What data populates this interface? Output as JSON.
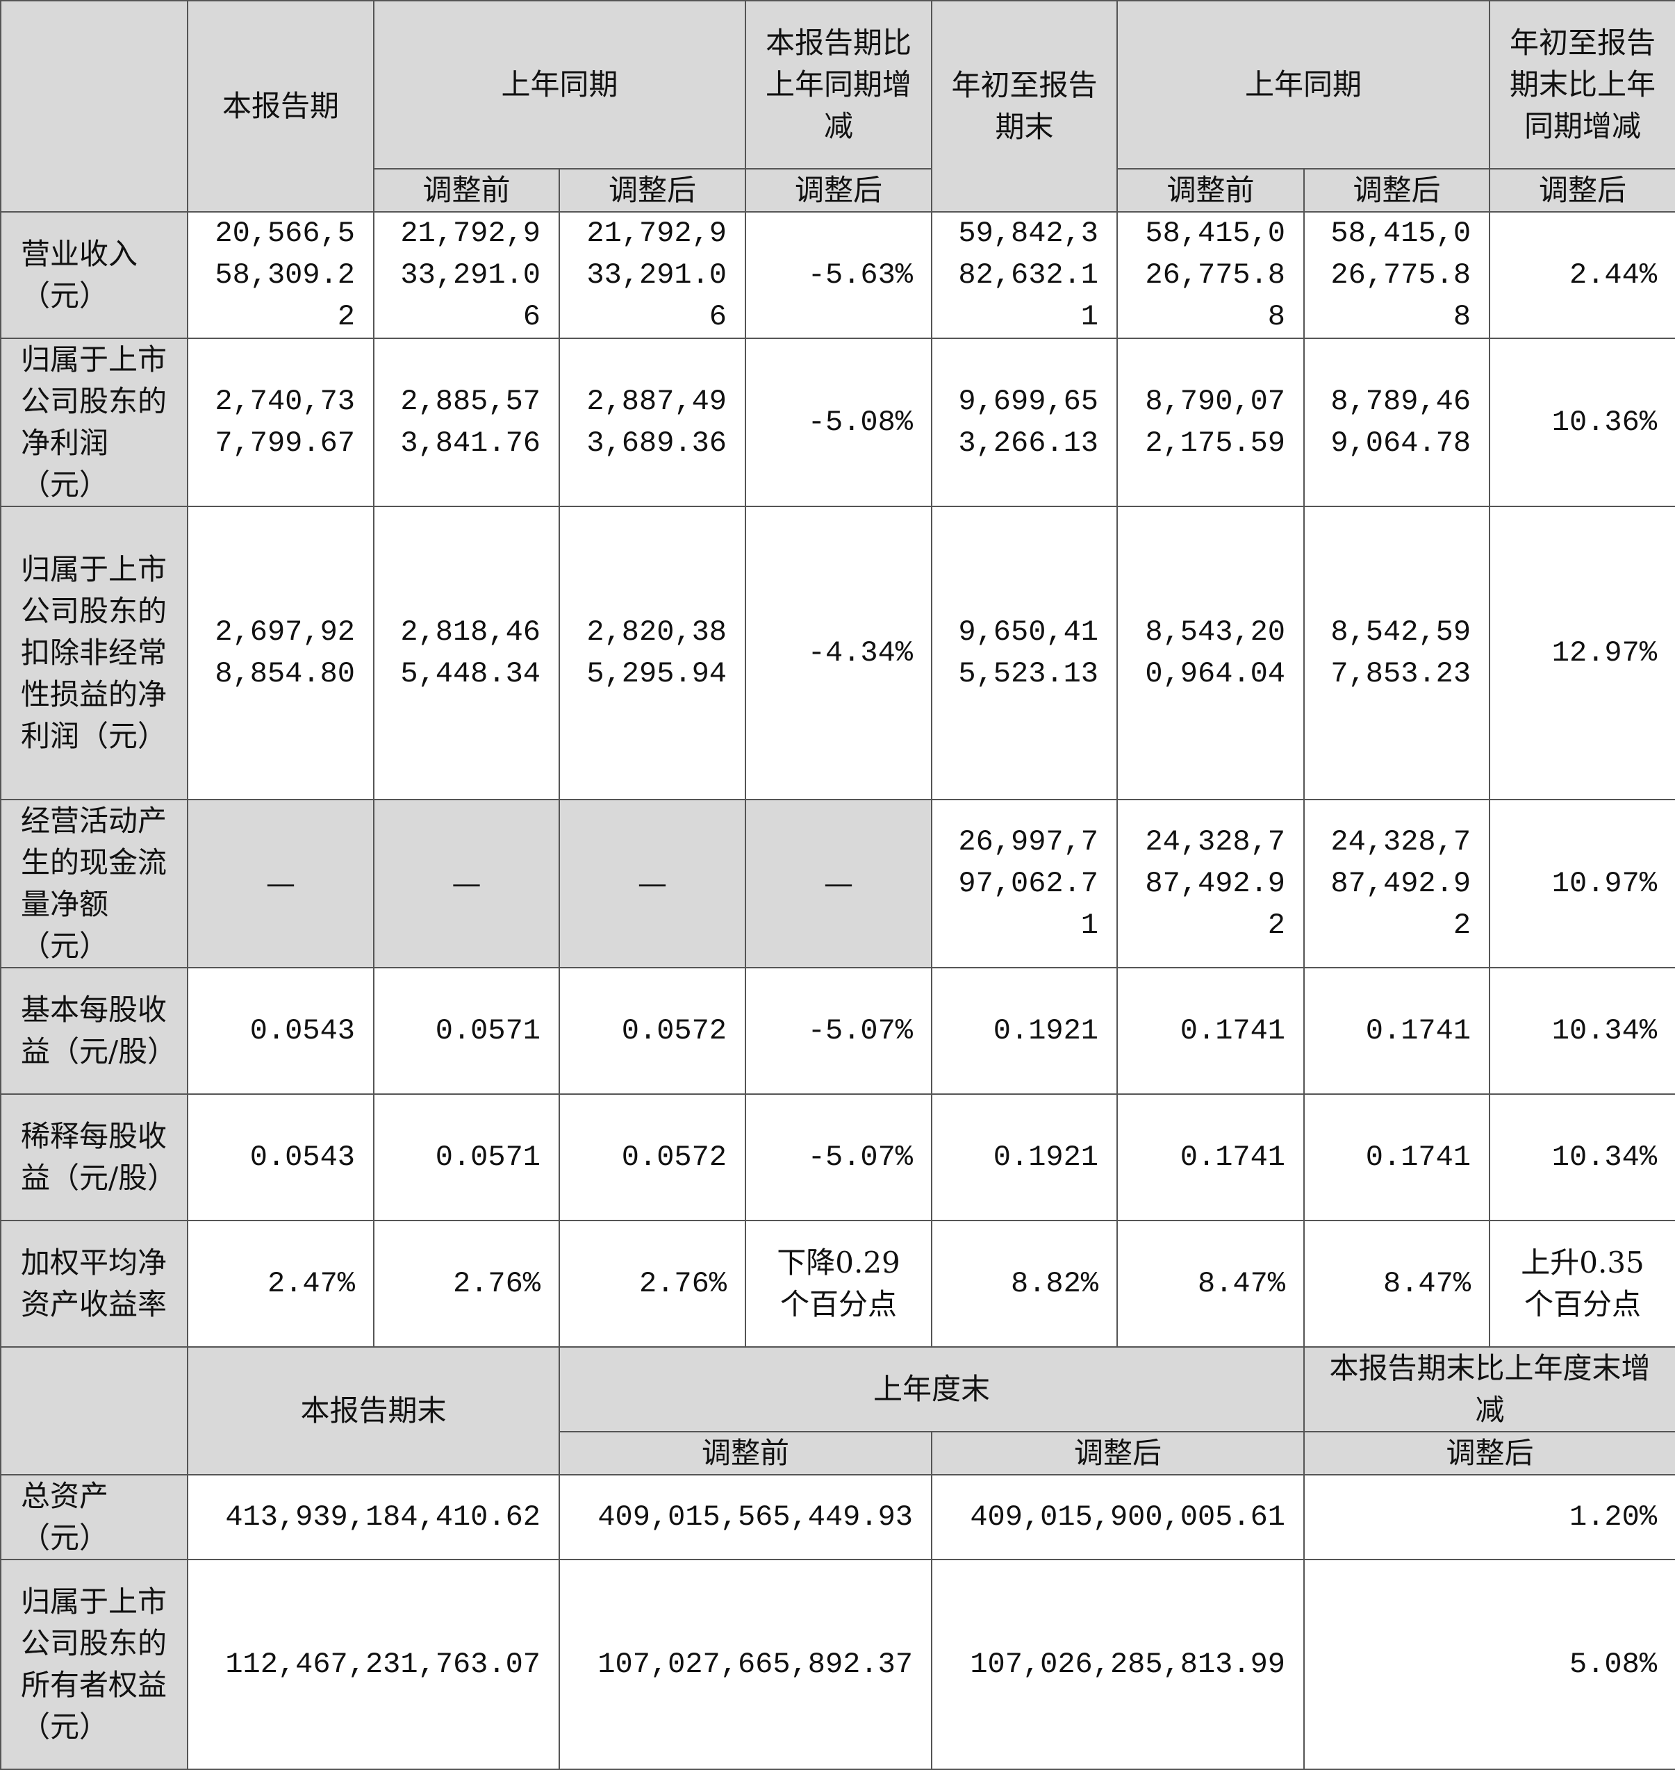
{
  "section1": {
    "headers": {
      "current_period": "本报告期",
      "same_period_last_year": "上年同期",
      "change_current": "本报告期比上年同期增减",
      "ytd": "年初至报告期末",
      "same_period_last_year_ytd": "上年同期",
      "change_ytd": "年初至报告期末比上年同期增减",
      "before_adj": "调整前",
      "after_adj": "调整后"
    },
    "rows": [
      {
        "label": "营业收入（元）",
        "values": [
          "20,566,558,309.22",
          "21,792,933,291.06",
          "21,792,933,291.06",
          "-5.63%",
          "59,842,382,632.11",
          "58,415,026,775.88",
          "58,415,026,775.88",
          "2.44%"
        ]
      },
      {
        "label": "归属于上市公司股东的净利润（元）",
        "values": [
          "2,740,737,799.67",
          "2,885,573,841.76",
          "2,887,493,689.36",
          "-5.08%",
          "9,699,653,266.13",
          "8,790,072,175.59",
          "8,789,469,064.78",
          "10.36%"
        ]
      },
      {
        "label": "归属于上市公司股东的扣除非经常性损益的净利润（元）",
        "values": [
          "2,697,928,854.80",
          "2,818,465,448.34",
          "2,820,385,295.94",
          "-4.34%",
          "9,650,415,523.13",
          "8,543,200,964.04",
          "8,542,597,853.23",
          "12.97%"
        ]
      },
      {
        "label": "经营活动产生的现金流量净额（元）",
        "values": [
          "—",
          "—",
          "—",
          "—",
          "26,997,797,062.71",
          "24,328,787,492.92",
          "24,328,787,492.92",
          "10.97%"
        ]
      },
      {
        "label": "基本每股收益（元/股）",
        "values": [
          "0.0543",
          "0.0571",
          "0.0572",
          "-5.07%",
          "0.1921",
          "0.1741",
          "0.1741",
          "10.34%"
        ]
      },
      {
        "label": "稀释每股收益（元/股）",
        "values": [
          "0.0543",
          "0.0571",
          "0.0572",
          "-5.07%",
          "0.1921",
          "0.1741",
          "0.1741",
          "10.34%"
        ]
      },
      {
        "label": "加权平均净资产收益率",
        "values": [
          "2.47%",
          "2.76%",
          "2.76%",
          "下降0.29个百分点",
          "8.82%",
          "8.47%",
          "8.47%",
          "上升0.35个百分点"
        ]
      }
    ]
  },
  "section2": {
    "headers": {
      "period_end": "本报告期末",
      "last_year_end": "上年度末",
      "change": "本报告期末比上年度末增减",
      "before_adj": "调整前",
      "after_adj": "调整后",
      "after_adj_change": "调整后"
    },
    "rows": [
      {
        "label": "总资产（元）",
        "values": [
          "413,939,184,410.62",
          "409,015,565,449.93",
          "409,015,900,005.61",
          "1.20%"
        ]
      },
      {
        "label": "归属于上市公司股东的所有者权益（元）",
        "values": [
          "112,467,231,763.07",
          "107,027,665,892.37",
          "107,026,285,813.99",
          "5.08%"
        ]
      }
    ]
  }
}
